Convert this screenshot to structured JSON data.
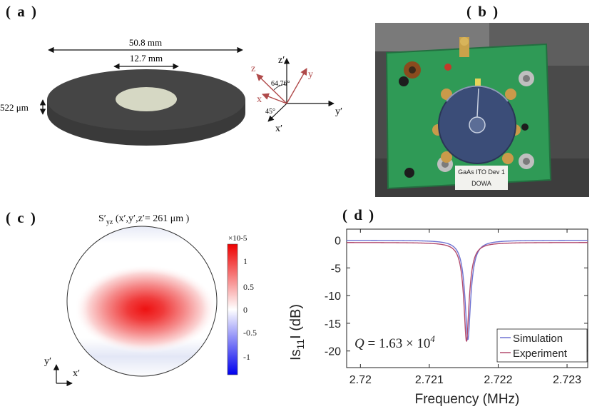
{
  "panel_a": {
    "label": "( a )",
    "dim_outer": "50.8 mm",
    "dim_inner": "12.7 mm",
    "dim_thickness": "522 μm",
    "axes": {
      "z_prime": "z′",
      "y_prime": "y′",
      "x_prime": "x′",
      "z": "z",
      "y": "y",
      "x": "x",
      "angle_1": "64.76°",
      "angle_2": "45°"
    }
  },
  "panel_b": {
    "label": "( b )",
    "tag_line1": "GaAs ITO Dev 1",
    "tag_line2": "DOWA"
  },
  "panel_c": {
    "label": "( c )",
    "title": "S′yz (x′,y′,z′= 261 μm )",
    "colorbar_exponent": "×10-5",
    "colorbar_ticks": [
      "1",
      "0.5",
      "0",
      "-0.5",
      "-1"
    ],
    "axis_y": "y′",
    "axis_x": "x′"
  },
  "panel_d": {
    "label": "( d )",
    "annotation": "Q = 1.63 × 10^4"
  },
  "chart_data": {
    "type": "line",
    "xlabel": "Frequency (MHz)",
    "ylabel": "Is11I (dB)",
    "xlim": [
      2.7198,
      2.7233
    ],
    "ylim": [
      -23,
      2
    ],
    "xticks": [
      "2.72",
      "2.721",
      "2.722",
      "2.723"
    ],
    "xtick_values": [
      2.72,
      2.721,
      2.722,
      2.723
    ],
    "yticks": [
      "0",
      "-5",
      "-10",
      "-15",
      "-20"
    ],
    "ytick_values": [
      0,
      -5,
      -10,
      -15,
      -20
    ],
    "grid": false,
    "legend": "bottom-right",
    "series": [
      {
        "name": "Simulation",
        "color": "#6f73d2",
        "center": 2.72156,
        "depth": -18.0,
        "baseline": 0.0,
        "halfwidth": 8.5e-05
      },
      {
        "name": "Experiment",
        "color": "#b24b6e",
        "center": 2.72154,
        "depth": -18.3,
        "baseline": -0.4,
        "halfwidth": 8e-05
      }
    ]
  }
}
